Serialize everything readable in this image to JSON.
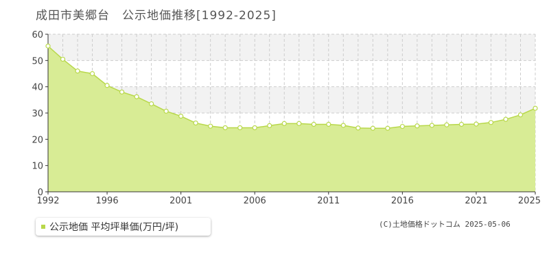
{
  "title": "成田市美郷台　公示地価推移[1992-2025]",
  "legend_label": "公示地価 平均坪単価(万円/坪)",
  "credit": "(C)土地価格ドットコム 2025-05-06",
  "colors": {
    "fill": "#d8ec95",
    "line": "#b8d84a",
    "marker_fill": "#ffffff",
    "grid": "#cccccc",
    "band": "#f2f2f2"
  },
  "chart_data": {
    "type": "area",
    "title": "成田市美郷台　公示地価推移[1992-2025]",
    "xlabel": "",
    "ylabel": "",
    "xlim": [
      1992,
      2025
    ],
    "ylim": [
      0,
      60
    ],
    "yticks": [
      0,
      10,
      20,
      30,
      40,
      50,
      60
    ],
    "xtick_labels": [
      "1992",
      "1996",
      "2001",
      "2006",
      "2011",
      "2016",
      "2021",
      "2025"
    ],
    "grid": true,
    "legend_position": "bottom-left",
    "series": [
      {
        "name": "公示地価 平均坪単価(万円/坪)",
        "x": [
          1992,
          1993,
          1994,
          1995,
          1996,
          1997,
          1998,
          1999,
          2000,
          2001,
          2002,
          2003,
          2004,
          2005,
          2006,
          2007,
          2008,
          2009,
          2010,
          2011,
          2012,
          2013,
          2014,
          2015,
          2016,
          2017,
          2018,
          2019,
          2020,
          2021,
          2022,
          2023,
          2024,
          2025
        ],
        "values": [
          55.5,
          50.5,
          46,
          45,
          40.5,
          38,
          36.2,
          33.5,
          30.7,
          28.8,
          26.2,
          25,
          24.4,
          24.4,
          24.4,
          25.2,
          26,
          26,
          25.7,
          25.7,
          25.3,
          24.3,
          24.2,
          24.2,
          24.9,
          25.1,
          25.3,
          25.5,
          25.7,
          25.8,
          26.4,
          27.6,
          29.3,
          31.8
        ]
      }
    ]
  }
}
